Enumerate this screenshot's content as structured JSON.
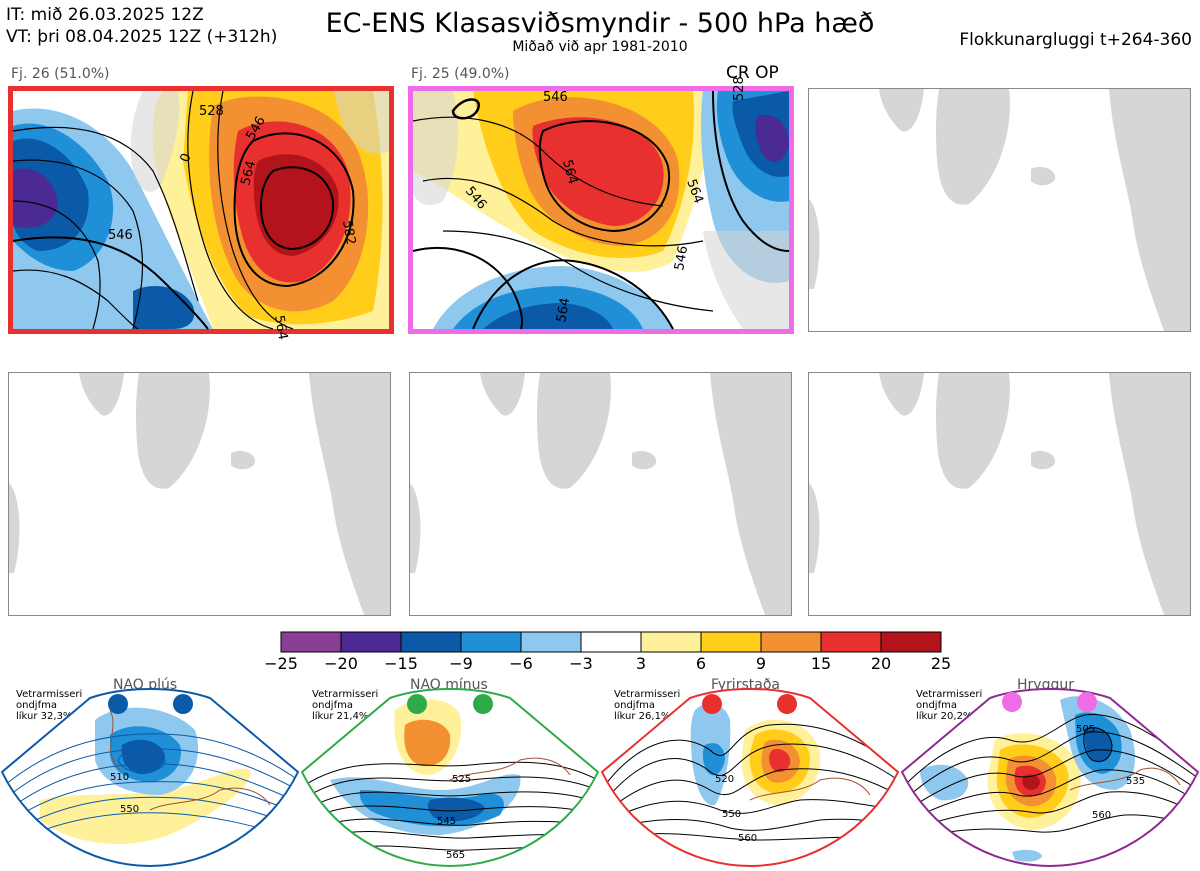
{
  "header": {
    "init_line": "IT: mið 26.03.2025 12Z",
    "valid_line": "VT: þri 08.04.2025 12Z  (+312h)",
    "title": "EC-ENS Klasasviðsmyndir - 500 hPa hæð",
    "subtitle": "Miðað við apr 1981-2010",
    "window": "Flokkunargluggi t+264-360"
  },
  "clusters": [
    {
      "label": "Fj. 26 (51.0%)",
      "border_color": "#e8302f",
      "contours": [
        "528",
        "546",
        "564",
        "582",
        "546",
        "564",
        "0"
      ]
    },
    {
      "label": "Fj. 25 (49.0%)",
      "border_color": "#ef6ce9",
      "contours": [
        "546",
        "564",
        "546",
        "564",
        "528",
        "546",
        "564"
      ],
      "tag": "CR OP"
    }
  ],
  "colorbar": {
    "ticks": [
      "−25",
      "−20",
      "−15",
      "−9",
      "−6",
      "−3",
      "3",
      "6",
      "9",
      "15",
      "20",
      "25"
    ],
    "colors": [
      "#8a3f97",
      "#4b2a93",
      "#0b5aa8",
      "#1f8fd8",
      "#8ec8ee",
      "#ffffff",
      "#fff09a",
      "#ffcd1a",
      "#f39032",
      "#e8302f",
      "#b3131a"
    ]
  },
  "regimes": [
    {
      "name": "NAO plús",
      "meta": [
        "Vetrarmisseri",
        "ondjfma",
        "líkur 32,3%"
      ],
      "color": "#0b5aa8",
      "contours": [
        "510",
        "550"
      ]
    },
    {
      "name": "NAO mínus",
      "meta": [
        "Vetrarmisseri",
        "ondjfma",
        "líkur 21,4%"
      ],
      "color": "#2eaa4a",
      "contours": [
        "525",
        "545",
        "565"
      ]
    },
    {
      "name": "Fyrirstaða",
      "meta": [
        "Vetrarmisseri",
        "ondjfma",
        "líkur 26,1%"
      ],
      "color": "#e8302f",
      "contours": [
        "520",
        "550",
        "560"
      ]
    },
    {
      "name": "Hryggur",
      "meta": [
        "Vetrarmisseri",
        "ondjfma",
        "líkur 20,2%"
      ],
      "color": "#8e2a92",
      "contours": [
        "505",
        "535",
        "560"
      ]
    }
  ]
}
